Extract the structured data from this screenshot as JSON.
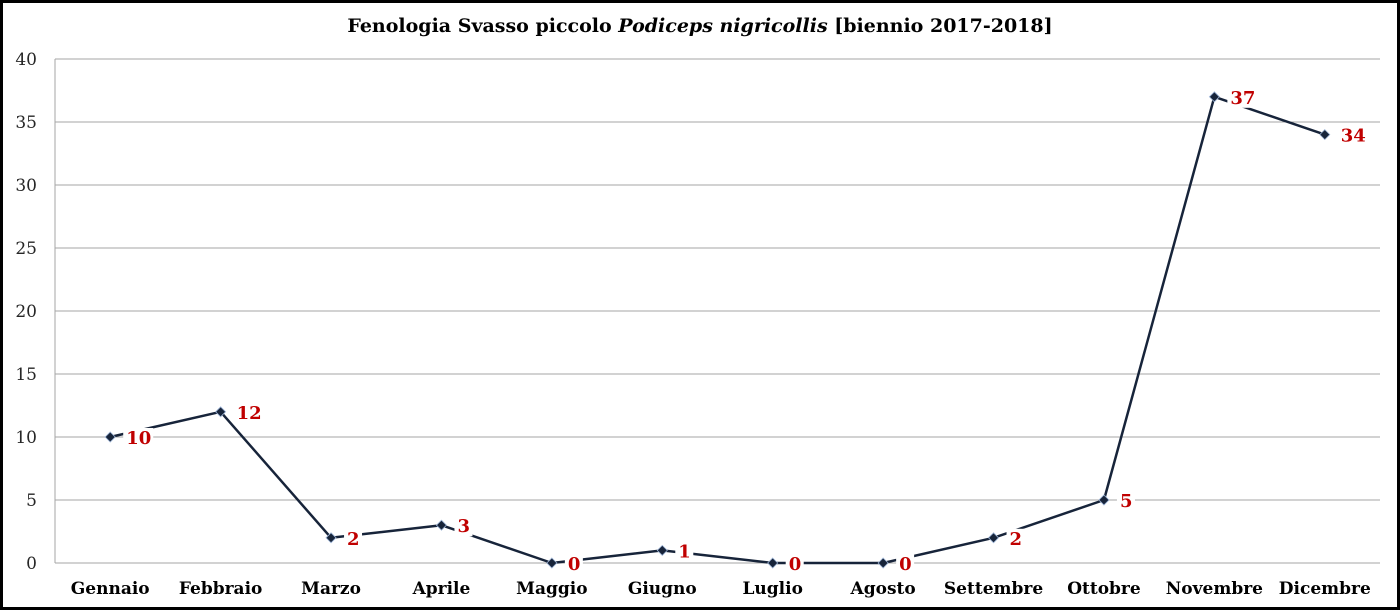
{
  "chart_data": {
    "type": "line",
    "title": {
      "prefix": "Fenologia Svasso piccolo ",
      "italic": "Podiceps nigricollis",
      "suffix": " [biennio 2017-2018]"
    },
    "categories": [
      "Gennaio",
      "Febbraio",
      "Marzo",
      "Aprile",
      "Maggio",
      "Giugno",
      "Luglio",
      "Agosto",
      "Settembre",
      "Ottobre",
      "Novembre",
      "Dicembre"
    ],
    "series": [
      {
        "values": [
          10,
          12,
          2,
          3,
          0,
          1,
          0,
          0,
          2,
          5,
          37,
          34
        ]
      }
    ],
    "data_labels": [
      "10",
      "12",
      "2",
      "3",
      "0",
      "1",
      "0",
      "0",
      "2",
      "5",
      "37",
      "34"
    ],
    "ylim": [
      0,
      40
    ],
    "yticks": [
      0,
      5,
      10,
      15,
      20,
      25,
      30,
      35,
      40
    ],
    "grid": true,
    "legend": "none",
    "xlabel": "",
    "ylabel": "",
    "colors": {
      "line": "#17243a",
      "marker": "#17243a",
      "marker_edge": "#9db4d6",
      "data_label": "#c00000",
      "grid": "#a6a6a6"
    }
  }
}
